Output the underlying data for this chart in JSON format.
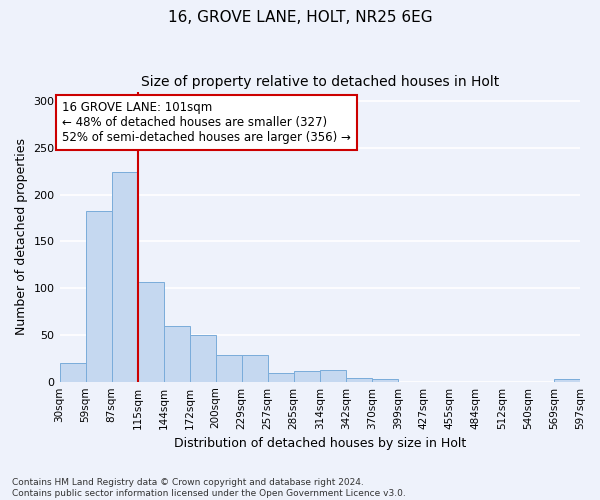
{
  "title": "16, GROVE LANE, HOLT, NR25 6EG",
  "subtitle": "Size of property relative to detached houses in Holt",
  "xlabel": "Distribution of detached houses by size in Holt",
  "ylabel": "Number of detached properties",
  "bar_values": [
    20,
    182,
    224,
    107,
    60,
    50,
    28,
    28,
    9,
    11,
    12,
    4,
    3,
    0,
    0,
    0,
    0,
    0,
    0,
    3
  ],
  "tick_labels": [
    "30sqm",
    "59sqm",
    "87sqm",
    "115sqm",
    "144sqm",
    "172sqm",
    "200sqm",
    "229sqm",
    "257sqm",
    "285sqm",
    "314sqm",
    "342sqm",
    "370sqm",
    "399sqm",
    "427sqm",
    "455sqm",
    "484sqm",
    "512sqm",
    "540sqm",
    "569sqm",
    "597sqm"
  ],
  "bar_color": "#c5d8f0",
  "bar_edge_color": "#7aacda",
  "background_color": "#eef2fb",
  "grid_color": "#ffffff",
  "annotation_text": "16 GROVE LANE: 101sqm\n← 48% of detached houses are smaller (327)\n52% of semi-detached houses are larger (356) →",
  "annotation_box_color": "#ffffff",
  "annotation_box_edge": "#cc0000",
  "vline_bar_index": 2,
  "vline_color": "#cc0000",
  "ylim": [
    0,
    310
  ],
  "yticks": [
    0,
    50,
    100,
    150,
    200,
    250,
    300
  ],
  "footnote": "Contains HM Land Registry data © Crown copyright and database right 2024.\nContains public sector information licensed under the Open Government Licence v3.0.",
  "title_fontsize": 11,
  "subtitle_fontsize": 10,
  "ylabel_fontsize": 9,
  "xlabel_fontsize": 9,
  "tick_fontsize": 7.5,
  "annot_fontsize": 8.5
}
